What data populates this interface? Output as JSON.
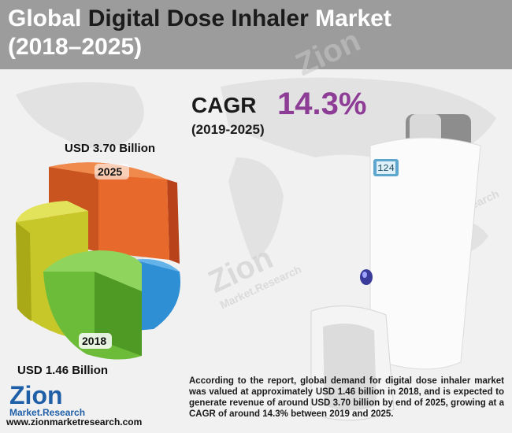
{
  "header": {
    "title_parts": [
      "Global",
      "Digital Dose Inhaler",
      "Market"
    ],
    "period": "(2018–2025)"
  },
  "cagr": {
    "label": "CAGR",
    "value": "14.3%",
    "period": "(2019-2025)"
  },
  "graphic": {
    "top_value": "USD 3.70 Billion",
    "top_year": "2025",
    "bottom_year": "2018",
    "bottom_value": "USD 1.46 Billion"
  },
  "device_display": "124",
  "description": "According to the report, global demand for digital dose inhaler market was valued at approximately USD 1.46 billion in 2018, and is expected to generate revenue of around USD 3.70 billion by end of 2025, growing at a CAGR of around 14.3% between 2019 and 2025.",
  "brand": {
    "name": "Zion",
    "sub": "Market.Research",
    "url": "www.zionmarketresearch.com"
  }
}
